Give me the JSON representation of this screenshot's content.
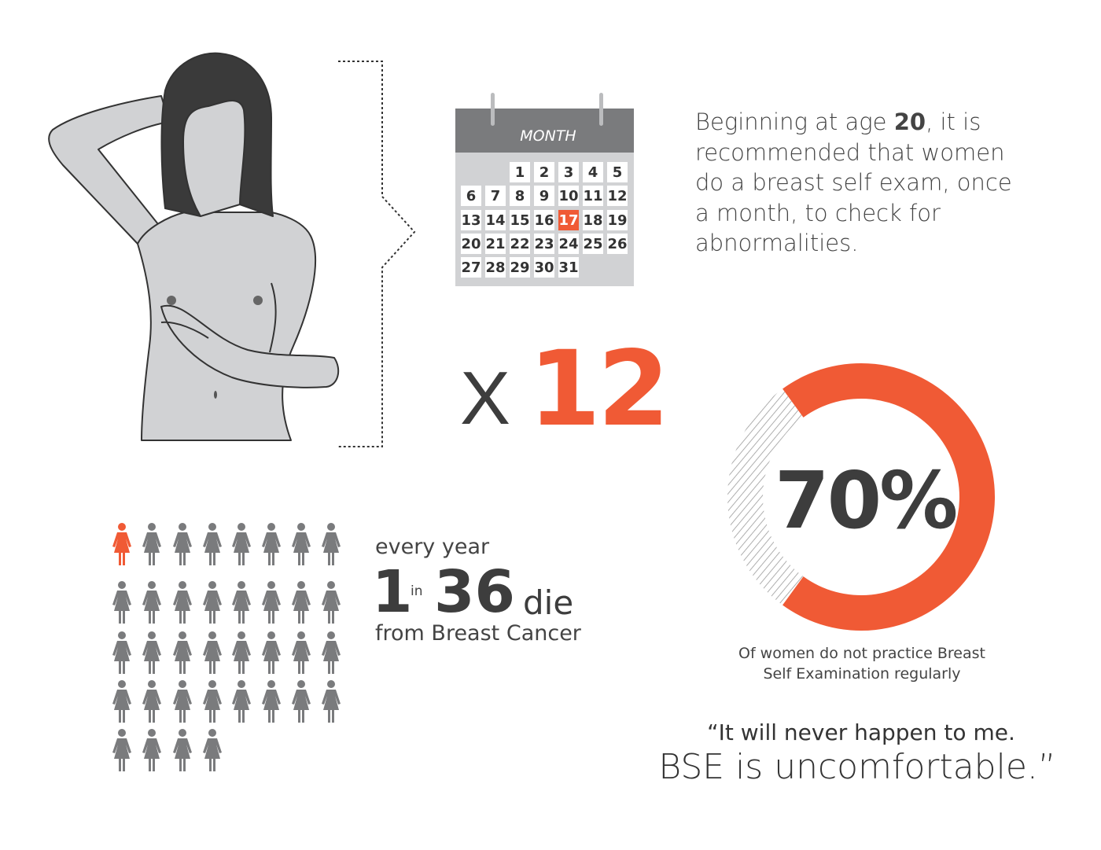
{
  "calendar": {
    "title": "MONTH",
    "days": [
      "1",
      "2",
      "3",
      "4",
      "5",
      "6",
      "7",
      "8",
      "9",
      "10",
      "11",
      "12",
      "13",
      "14",
      "15",
      "16",
      "17",
      "18",
      "19",
      "20",
      "21",
      "22",
      "23",
      "24",
      "25",
      "26",
      "27",
      "28",
      "29",
      "30",
      "31"
    ],
    "highlighted_day": "17",
    "first_weekday_offset": 2
  },
  "intro": {
    "pre": "Beginning at age ",
    "age": "20",
    "post": ", it is recommended that women do a breast self exam, once a month, to check for abnormalities."
  },
  "frequency": {
    "times": "X",
    "count": "12"
  },
  "stat": {
    "every_year": "every year",
    "one": "1",
    "in": "in",
    "total": "36",
    "die": "die",
    "from": "from Breast Cancer",
    "figures_total": 36,
    "figures_highlighted": 1
  },
  "chart_data": {
    "type": "pie",
    "variant": "donut",
    "values": [
      70,
      30
    ],
    "center_label": "70%",
    "caption": "Of women do not practice Breast Self Examination regularly",
    "colors": {
      "highlight": "#f05a35",
      "remainder": "hatched gray"
    }
  },
  "quote": {
    "line1": "“It will never happen to me.",
    "line2": "BSE is uncomfortable.”"
  },
  "colors": {
    "accent": "#f05a35",
    "text": "#3d3d3d",
    "figure": "#7a7b7d"
  }
}
